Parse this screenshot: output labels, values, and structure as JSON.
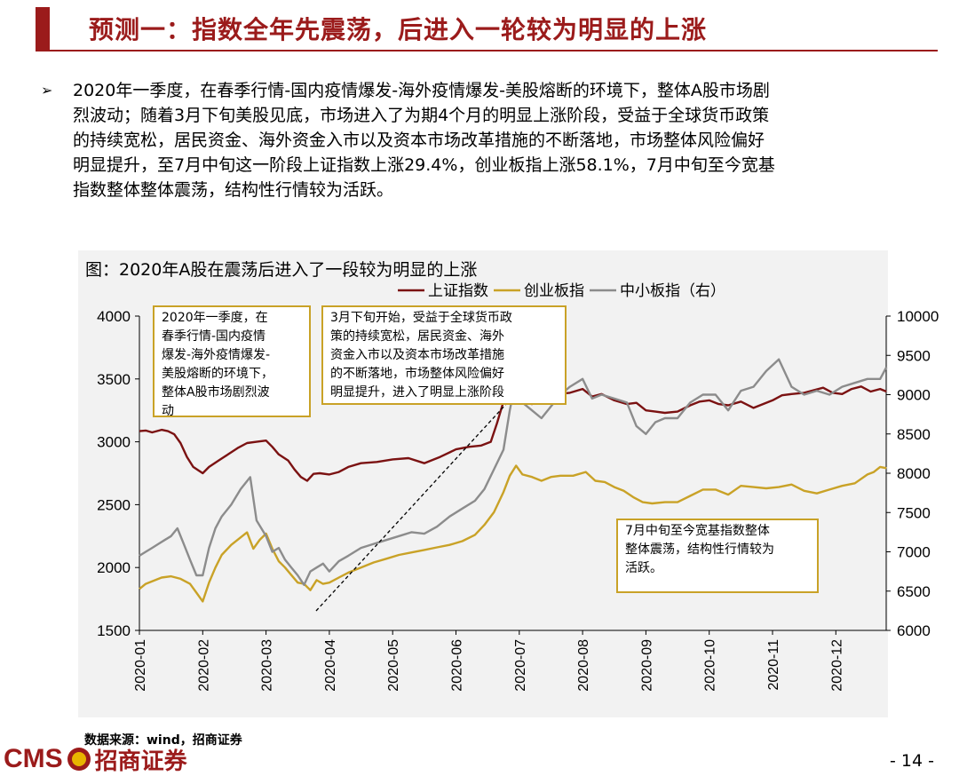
{
  "header": {
    "title": "预测一：指数全年先震荡，后进入一轮较为明显的上涨"
  },
  "body": {
    "bullet_symbol": "➢",
    "paragraph": "2020年一季度，在春季行情-国内疫情爆发-海外疫情爆发-美股熔断的环境下，整体A股市场剧\n烈波动；随着3月下旬美股见底，市场进入了为期4个月的明显上涨阶段，受益于全球货币政策\n的持续宽松，居民资金、海外资金入市以及资本市场改革措施的不断落地，市场整体风险偏好\n明显提升，至7月中旬这一阶段上证指数上涨29.4%，创业板指上涨58.1%，7月中旬至今宽基\n指数整体整体震荡，结构性行情较为活跃。"
  },
  "chart_data": {
    "type": "line",
    "title": "图：2020年A股在震荡后进入了一段较为明显的上涨",
    "x_ticks": [
      "2020-01",
      "2020-02",
      "2020-03",
      "2020-04",
      "2020-05",
      "2020-06",
      "2020-07",
      "2020-08",
      "2020-09",
      "2020-10",
      "2020-11",
      "2020-12"
    ],
    "y_left": {
      "ticks": [
        1500,
        2000,
        2500,
        3000,
        3500,
        4000
      ],
      "ylim": [
        1500,
        4000
      ]
    },
    "y_right": {
      "ticks": [
        6000,
        6500,
        7000,
        7500,
        8000,
        8500,
        9000,
        9500,
        10000
      ],
      "ylim": [
        6000,
        10000
      ]
    },
    "legend_position": "top",
    "series": [
      {
        "name": "上证指数",
        "axis": "left",
        "color": "#7b1212",
        "points": [
          [
            1.0,
            3085
          ],
          [
            1.1,
            3090
          ],
          [
            1.2,
            3075
          ],
          [
            1.35,
            3095
          ],
          [
            1.45,
            3085
          ],
          [
            1.55,
            3060
          ],
          [
            1.65,
            2990
          ],
          [
            1.75,
            2880
          ],
          [
            1.85,
            2800
          ],
          [
            2.0,
            2750
          ],
          [
            2.1,
            2800
          ],
          [
            2.25,
            2850
          ],
          [
            2.4,
            2900
          ],
          [
            2.55,
            2950
          ],
          [
            2.7,
            2990
          ],
          [
            2.85,
            3000
          ],
          [
            3.0,
            3010
          ],
          [
            3.1,
            2960
          ],
          [
            3.2,
            2900
          ],
          [
            3.35,
            2850
          ],
          [
            3.45,
            2780
          ],
          [
            3.55,
            2720
          ],
          [
            3.65,
            2690
          ],
          [
            3.75,
            2745
          ],
          [
            3.85,
            2750
          ],
          [
            4.0,
            2740
          ],
          [
            4.15,
            2760
          ],
          [
            4.3,
            2800
          ],
          [
            4.5,
            2830
          ],
          [
            4.75,
            2840
          ],
          [
            5.0,
            2860
          ],
          [
            5.25,
            2870
          ],
          [
            5.5,
            2830
          ],
          [
            5.75,
            2880
          ],
          [
            6.0,
            2940
          ],
          [
            6.2,
            2960
          ],
          [
            6.4,
            2970
          ],
          [
            6.55,
            3000
          ],
          [
            6.65,
            3150
          ],
          [
            6.75,
            3320
          ],
          [
            6.85,
            3450
          ],
          [
            6.95,
            3370
          ],
          [
            7.05,
            3320
          ],
          [
            7.2,
            3300
          ],
          [
            7.4,
            3350
          ],
          [
            7.6,
            3380
          ],
          [
            7.8,
            3390
          ],
          [
            8.0,
            3420
          ],
          [
            8.15,
            3360
          ],
          [
            8.3,
            3380
          ],
          [
            8.5,
            3330
          ],
          [
            8.7,
            3300
          ],
          [
            8.85,
            3310
          ],
          [
            9.0,
            3250
          ],
          [
            9.15,
            3240
          ],
          [
            9.3,
            3230
          ],
          [
            9.5,
            3240
          ],
          [
            9.7,
            3290
          ],
          [
            9.85,
            3320
          ],
          [
            10.0,
            3330
          ],
          [
            10.15,
            3300
          ],
          [
            10.3,
            3290
          ],
          [
            10.5,
            3320
          ],
          [
            10.7,
            3270
          ],
          [
            10.85,
            3300
          ],
          [
            11.0,
            3330
          ],
          [
            11.15,
            3370
          ],
          [
            11.3,
            3380
          ],
          [
            11.5,
            3390
          ],
          [
            11.65,
            3410
          ],
          [
            11.8,
            3430
          ],
          [
            11.95,
            3390
          ],
          [
            12.1,
            3380
          ],
          [
            12.25,
            3420
          ],
          [
            12.4,
            3440
          ],
          [
            12.55,
            3400
          ],
          [
            12.7,
            3420
          ],
          [
            12.8,
            3400
          ]
        ]
      },
      {
        "name": "创业板指",
        "axis": "left",
        "color": "#c9a227",
        "points": [
          [
            1.0,
            1830
          ],
          [
            1.1,
            1870
          ],
          [
            1.2,
            1890
          ],
          [
            1.35,
            1920
          ],
          [
            1.5,
            1930
          ],
          [
            1.65,
            1910
          ],
          [
            1.8,
            1870
          ],
          [
            1.9,
            1800
          ],
          [
            2.0,
            1730
          ],
          [
            2.1,
            1880
          ],
          [
            2.2,
            2000
          ],
          [
            2.3,
            2100
          ],
          [
            2.45,
            2180
          ],
          [
            2.6,
            2240
          ],
          [
            2.7,
            2280
          ],
          [
            2.8,
            2150
          ],
          [
            2.9,
            2220
          ],
          [
            3.0,
            2270
          ],
          [
            3.1,
            2150
          ],
          [
            3.2,
            2050
          ],
          [
            3.3,
            2000
          ],
          [
            3.4,
            1940
          ],
          [
            3.5,
            1880
          ],
          [
            3.6,
            1870
          ],
          [
            3.7,
            1820
          ],
          [
            3.8,
            1900
          ],
          [
            3.9,
            1870
          ],
          [
            4.0,
            1880
          ],
          [
            4.15,
            1920
          ],
          [
            4.3,
            1960
          ],
          [
            4.5,
            2000
          ],
          [
            4.7,
            2040
          ],
          [
            4.9,
            2070
          ],
          [
            5.1,
            2100
          ],
          [
            5.3,
            2120
          ],
          [
            5.5,
            2140
          ],
          [
            5.7,
            2160
          ],
          [
            5.9,
            2180
          ],
          [
            6.1,
            2210
          ],
          [
            6.3,
            2260
          ],
          [
            6.45,
            2340
          ],
          [
            6.6,
            2440
          ],
          [
            6.75,
            2600
          ],
          [
            6.85,
            2730
          ],
          [
            6.95,
            2810
          ],
          [
            7.05,
            2740
          ],
          [
            7.2,
            2720
          ],
          [
            7.35,
            2690
          ],
          [
            7.5,
            2720
          ],
          [
            7.65,
            2730
          ],
          [
            7.85,
            2730
          ],
          [
            8.05,
            2760
          ],
          [
            8.2,
            2690
          ],
          [
            8.35,
            2680
          ],
          [
            8.5,
            2640
          ],
          [
            8.65,
            2610
          ],
          [
            8.8,
            2560
          ],
          [
            8.95,
            2520
          ],
          [
            9.1,
            2510
          ],
          [
            9.3,
            2520
          ],
          [
            9.5,
            2520
          ],
          [
            9.7,
            2570
          ],
          [
            9.9,
            2620
          ],
          [
            10.1,
            2620
          ],
          [
            10.3,
            2580
          ],
          [
            10.5,
            2650
          ],
          [
            10.7,
            2640
          ],
          [
            10.9,
            2630
          ],
          [
            11.1,
            2640
          ],
          [
            11.3,
            2660
          ],
          [
            11.5,
            2610
          ],
          [
            11.7,
            2590
          ],
          [
            11.9,
            2620
          ],
          [
            12.1,
            2650
          ],
          [
            12.3,
            2670
          ],
          [
            12.5,
            2740
          ],
          [
            12.6,
            2760
          ],
          [
            12.7,
            2800
          ],
          [
            12.8,
            2790
          ]
        ]
      },
      {
        "name": "中小板指（右）",
        "axis": "right",
        "color": "#8c8c8c",
        "points": [
          [
            1.0,
            6950
          ],
          [
            1.1,
            7000
          ],
          [
            1.2,
            7050
          ],
          [
            1.3,
            7100
          ],
          [
            1.4,
            7150
          ],
          [
            1.5,
            7200
          ],
          [
            1.6,
            7300
          ],
          [
            1.7,
            7100
          ],
          [
            1.8,
            6900
          ],
          [
            1.9,
            6700
          ],
          [
            2.0,
            6700
          ],
          [
            2.1,
            7050
          ],
          [
            2.2,
            7300
          ],
          [
            2.3,
            7450
          ],
          [
            2.45,
            7600
          ],
          [
            2.6,
            7800
          ],
          [
            2.75,
            7950
          ],
          [
            2.85,
            7400
          ],
          [
            3.0,
            7200
          ],
          [
            3.1,
            7000
          ],
          [
            3.2,
            7050
          ],
          [
            3.3,
            6900
          ],
          [
            3.4,
            6800
          ],
          [
            3.5,
            6700
          ],
          [
            3.6,
            6580
          ],
          [
            3.7,
            6750
          ],
          [
            3.8,
            6800
          ],
          [
            3.9,
            6850
          ],
          [
            4.0,
            6750
          ],
          [
            4.15,
            6880
          ],
          [
            4.3,
            6950
          ],
          [
            4.5,
            7050
          ],
          [
            4.7,
            7100
          ],
          [
            4.9,
            7150
          ],
          [
            5.1,
            7200
          ],
          [
            5.3,
            7250
          ],
          [
            5.5,
            7230
          ],
          [
            5.7,
            7320
          ],
          [
            5.9,
            7450
          ],
          [
            6.1,
            7550
          ],
          [
            6.3,
            7650
          ],
          [
            6.45,
            7800
          ],
          [
            6.6,
            8050
          ],
          [
            6.75,
            8300
          ],
          [
            6.85,
            8800
          ],
          [
            6.95,
            9200
          ],
          [
            7.05,
            8900
          ],
          [
            7.2,
            8800
          ],
          [
            7.35,
            8700
          ],
          [
            7.5,
            8850
          ],
          [
            7.65,
            9000
          ],
          [
            7.8,
            9100
          ],
          [
            8.0,
            9200
          ],
          [
            8.15,
            8950
          ],
          [
            8.3,
            9000
          ],
          [
            8.5,
            8950
          ],
          [
            8.7,
            8900
          ],
          [
            8.85,
            8600
          ],
          [
            9.0,
            8500
          ],
          [
            9.15,
            8650
          ],
          [
            9.3,
            8700
          ],
          [
            9.5,
            8700
          ],
          [
            9.7,
            8900
          ],
          [
            9.9,
            9000
          ],
          [
            10.1,
            9000
          ],
          [
            10.3,
            8800
          ],
          [
            10.5,
            9050
          ],
          [
            10.7,
            9100
          ],
          [
            10.9,
            9300
          ],
          [
            11.1,
            9450
          ],
          [
            11.3,
            9100
          ],
          [
            11.5,
            9000
          ],
          [
            11.7,
            9050
          ],
          [
            11.9,
            9000
          ],
          [
            12.1,
            9100
          ],
          [
            12.3,
            9150
          ],
          [
            12.5,
            9200
          ],
          [
            12.7,
            9200
          ],
          [
            12.8,
            9350
          ]
        ]
      }
    ],
    "annotations": [
      "2020年一季度，在\n春季行情-国内疫情\n爆发-海外疫情爆发-\n美股熔断的环境下，\n整体A股市场剧烈波\n动",
      "3月下旬开始，受益于全球货币政\n策的持续宽松，居民资金、海外\n资金入市以及资本市场改革措施\n的不断落地，市场整体风险偏好\n明显提升，进入了明显上涨阶段",
      "7月中旬至今宽基指数整体\n整体震荡，结构性行情较为\n活跃。"
    ]
  },
  "footer": {
    "source": "数据来源：wind，招商证券",
    "logo_text": "CMS",
    "logo_cn": "招商证券",
    "page_number": "- 14 -"
  }
}
